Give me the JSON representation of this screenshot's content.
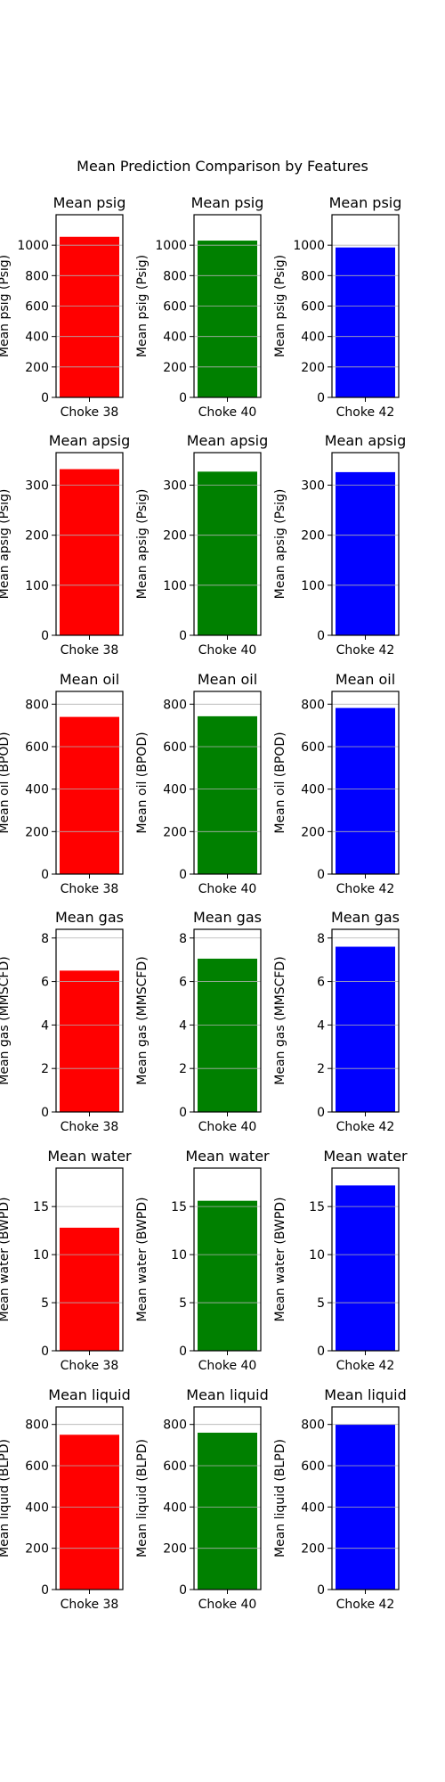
{
  "figure": {
    "suptitle": "Mean Prediction Comparison by Features"
  },
  "chart_data": [
    {
      "type": "bar",
      "title": "Mean psig",
      "ylabel": "Mean psig (Psig)",
      "categories": [
        "Choke 38"
      ],
      "values": [
        1055
      ],
      "color": "#ff0000",
      "ylim": [
        0,
        1200
      ],
      "yticks": [
        0,
        200,
        400,
        600,
        800,
        1000
      ],
      "grid": true
    },
    {
      "type": "bar",
      "title": "Mean psig",
      "ylabel": "Mean psig (Psig)",
      "categories": [
        "Choke 40"
      ],
      "values": [
        1030
      ],
      "color": "#008000",
      "ylim": [
        0,
        1200
      ],
      "yticks": [
        0,
        200,
        400,
        600,
        800,
        1000
      ],
      "grid": true
    },
    {
      "type": "bar",
      "title": "Mean psig",
      "ylabel": "Mean psig (Psig)",
      "categories": [
        "Choke 42"
      ],
      "values": [
        985
      ],
      "color": "#0000ff",
      "ylim": [
        0,
        1200
      ],
      "yticks": [
        0,
        200,
        400,
        600,
        800,
        1000
      ],
      "grid": true
    },
    {
      "type": "bar",
      "title": "Mean apsig",
      "ylabel": "Mean apsig (Psig)",
      "categories": [
        "Choke 38"
      ],
      "values": [
        332
      ],
      "color": "#ff0000",
      "ylim": [
        0,
        365
      ],
      "yticks": [
        0,
        100,
        200,
        300
      ],
      "grid": true
    },
    {
      "type": "bar",
      "title": "Mean apsig",
      "ylabel": "Mean apsig (Psig)",
      "categories": [
        "Choke 40"
      ],
      "values": [
        327
      ],
      "color": "#008000",
      "ylim": [
        0,
        365
      ],
      "yticks": [
        0,
        100,
        200,
        300
      ],
      "grid": true
    },
    {
      "type": "bar",
      "title": "Mean apsig",
      "ylabel": "Mean apsig (Psig)",
      "categories": [
        "Choke 42"
      ],
      "values": [
        326
      ],
      "color": "#0000ff",
      "ylim": [
        0,
        365
      ],
      "yticks": [
        0,
        100,
        200,
        300
      ],
      "grid": true
    },
    {
      "type": "bar",
      "title": "Mean oil",
      "ylabel": "Mean oil (BPOD)",
      "categories": [
        "Choke 38"
      ],
      "values": [
        740
      ],
      "color": "#ff0000",
      "ylim": [
        0,
        860
      ],
      "yticks": [
        0,
        200,
        400,
        600,
        800
      ],
      "grid": true
    },
    {
      "type": "bar",
      "title": "Mean oil",
      "ylabel": "Mean oil (BPOD)",
      "categories": [
        "Choke 40"
      ],
      "values": [
        743
      ],
      "color": "#008000",
      "ylim": [
        0,
        860
      ],
      "yticks": [
        0,
        200,
        400,
        600,
        800
      ],
      "grid": true
    },
    {
      "type": "bar",
      "title": "Mean oil",
      "ylabel": "Mean oil (BPOD)",
      "categories": [
        "Choke 42"
      ],
      "values": [
        782
      ],
      "color": "#0000ff",
      "ylim": [
        0,
        860
      ],
      "yticks": [
        0,
        200,
        400,
        600,
        800
      ],
      "grid": true
    },
    {
      "type": "bar",
      "title": "Mean gas",
      "ylabel": "Mean gas (MMSCFD)",
      "categories": [
        "Choke 38"
      ],
      "values": [
        6.5
      ],
      "color": "#ff0000",
      "ylim": [
        0,
        8.4
      ],
      "yticks": [
        0,
        2,
        4,
        6,
        8
      ],
      "grid": true
    },
    {
      "type": "bar",
      "title": "Mean gas",
      "ylabel": "Mean gas (MMSCFD)",
      "categories": [
        "Choke 40"
      ],
      "values": [
        7.05
      ],
      "color": "#008000",
      "ylim": [
        0,
        8.4
      ],
      "yticks": [
        0,
        2,
        4,
        6,
        8
      ],
      "grid": true
    },
    {
      "type": "bar",
      "title": "Mean gas",
      "ylabel": "Mean gas (MMSCFD)",
      "categories": [
        "Choke 42"
      ],
      "values": [
        7.6
      ],
      "color": "#0000ff",
      "ylim": [
        0,
        8.4
      ],
      "yticks": [
        0,
        2,
        4,
        6,
        8
      ],
      "grid": true
    },
    {
      "type": "bar",
      "title": "Mean water",
      "ylabel": "Mean water (BWPD)",
      "categories": [
        "Choke 38"
      ],
      "values": [
        12.8
      ],
      "color": "#ff0000",
      "ylim": [
        0,
        19
      ],
      "yticks": [
        0,
        5,
        10,
        15
      ],
      "grid": true
    },
    {
      "type": "bar",
      "title": "Mean water",
      "ylabel": "Mean water (BWPD)",
      "categories": [
        "Choke 40"
      ],
      "values": [
        15.6
      ],
      "color": "#008000",
      "ylim": [
        0,
        19
      ],
      "yticks": [
        0,
        5,
        10,
        15
      ],
      "grid": true
    },
    {
      "type": "bar",
      "title": "Mean water",
      "ylabel": "Mean water (BWPD)",
      "categories": [
        "Choke 42"
      ],
      "values": [
        17.2
      ],
      "color": "#0000ff",
      "ylim": [
        0,
        19
      ],
      "yticks": [
        0,
        5,
        10,
        15
      ],
      "grid": true
    },
    {
      "type": "bar",
      "title": "Mean liquid",
      "ylabel": "Mean liquid (BLPD)",
      "categories": [
        "Choke 38"
      ],
      "values": [
        750
      ],
      "color": "#ff0000",
      "ylim": [
        0,
        885
      ],
      "yticks": [
        0,
        200,
        400,
        600,
        800
      ],
      "grid": true
    },
    {
      "type": "bar",
      "title": "Mean liquid",
      "ylabel": "Mean liquid (BLPD)",
      "categories": [
        "Choke 40"
      ],
      "values": [
        760
      ],
      "color": "#008000",
      "ylim": [
        0,
        885
      ],
      "yticks": [
        0,
        200,
        400,
        600,
        800
      ],
      "grid": true
    },
    {
      "type": "bar",
      "title": "Mean liquid",
      "ylabel": "Mean liquid (BLPD)",
      "categories": [
        "Choke 42"
      ],
      "values": [
        800
      ],
      "color": "#0000ff",
      "ylim": [
        0,
        885
      ],
      "yticks": [
        0,
        200,
        400,
        600,
        800
      ],
      "grid": true
    }
  ]
}
